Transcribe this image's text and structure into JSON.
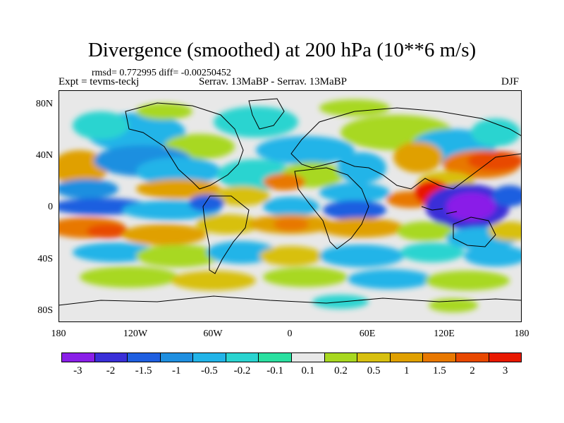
{
  "title": "Divergence (smoothed) at 200 hPa (10**6 m/s)",
  "stats": "rmsd= 0.772995 diff= -0.00250452",
  "expt": "Expt = tevms-teckj",
  "experiments": "Serrav.   13MaBP - Serrav.   13MaBP",
  "season": "DJF",
  "y_axis_labels": [
    "80N",
    "40N",
    "0",
    "40S",
    "80S"
  ],
  "x_axis_labels": [
    "180",
    "120W",
    "60W",
    "0",
    "60E",
    "120E",
    "180"
  ],
  "colorbar": {
    "labels": [
      "-3",
      "-2",
      "-1.5",
      "-1",
      "-0.5",
      "-0.2",
      "-0.1",
      "0.1",
      "0.2",
      "0.5",
      "1",
      "1.5",
      "2",
      "3"
    ],
    "colors": [
      "#8a1fe8",
      "#3a2fd8",
      "#1f5fe0",
      "#1f8fe0",
      "#22b4e8",
      "#2ad4d0",
      "#2ae0a0",
      "#e8e8e8",
      "#a8d820",
      "#d8c010",
      "#e0a000",
      "#e87800",
      "#e84800",
      "#e81800"
    ]
  },
  "colors": {
    "land_outline": "#000000",
    "neutral": "#e8e8e8"
  }
}
